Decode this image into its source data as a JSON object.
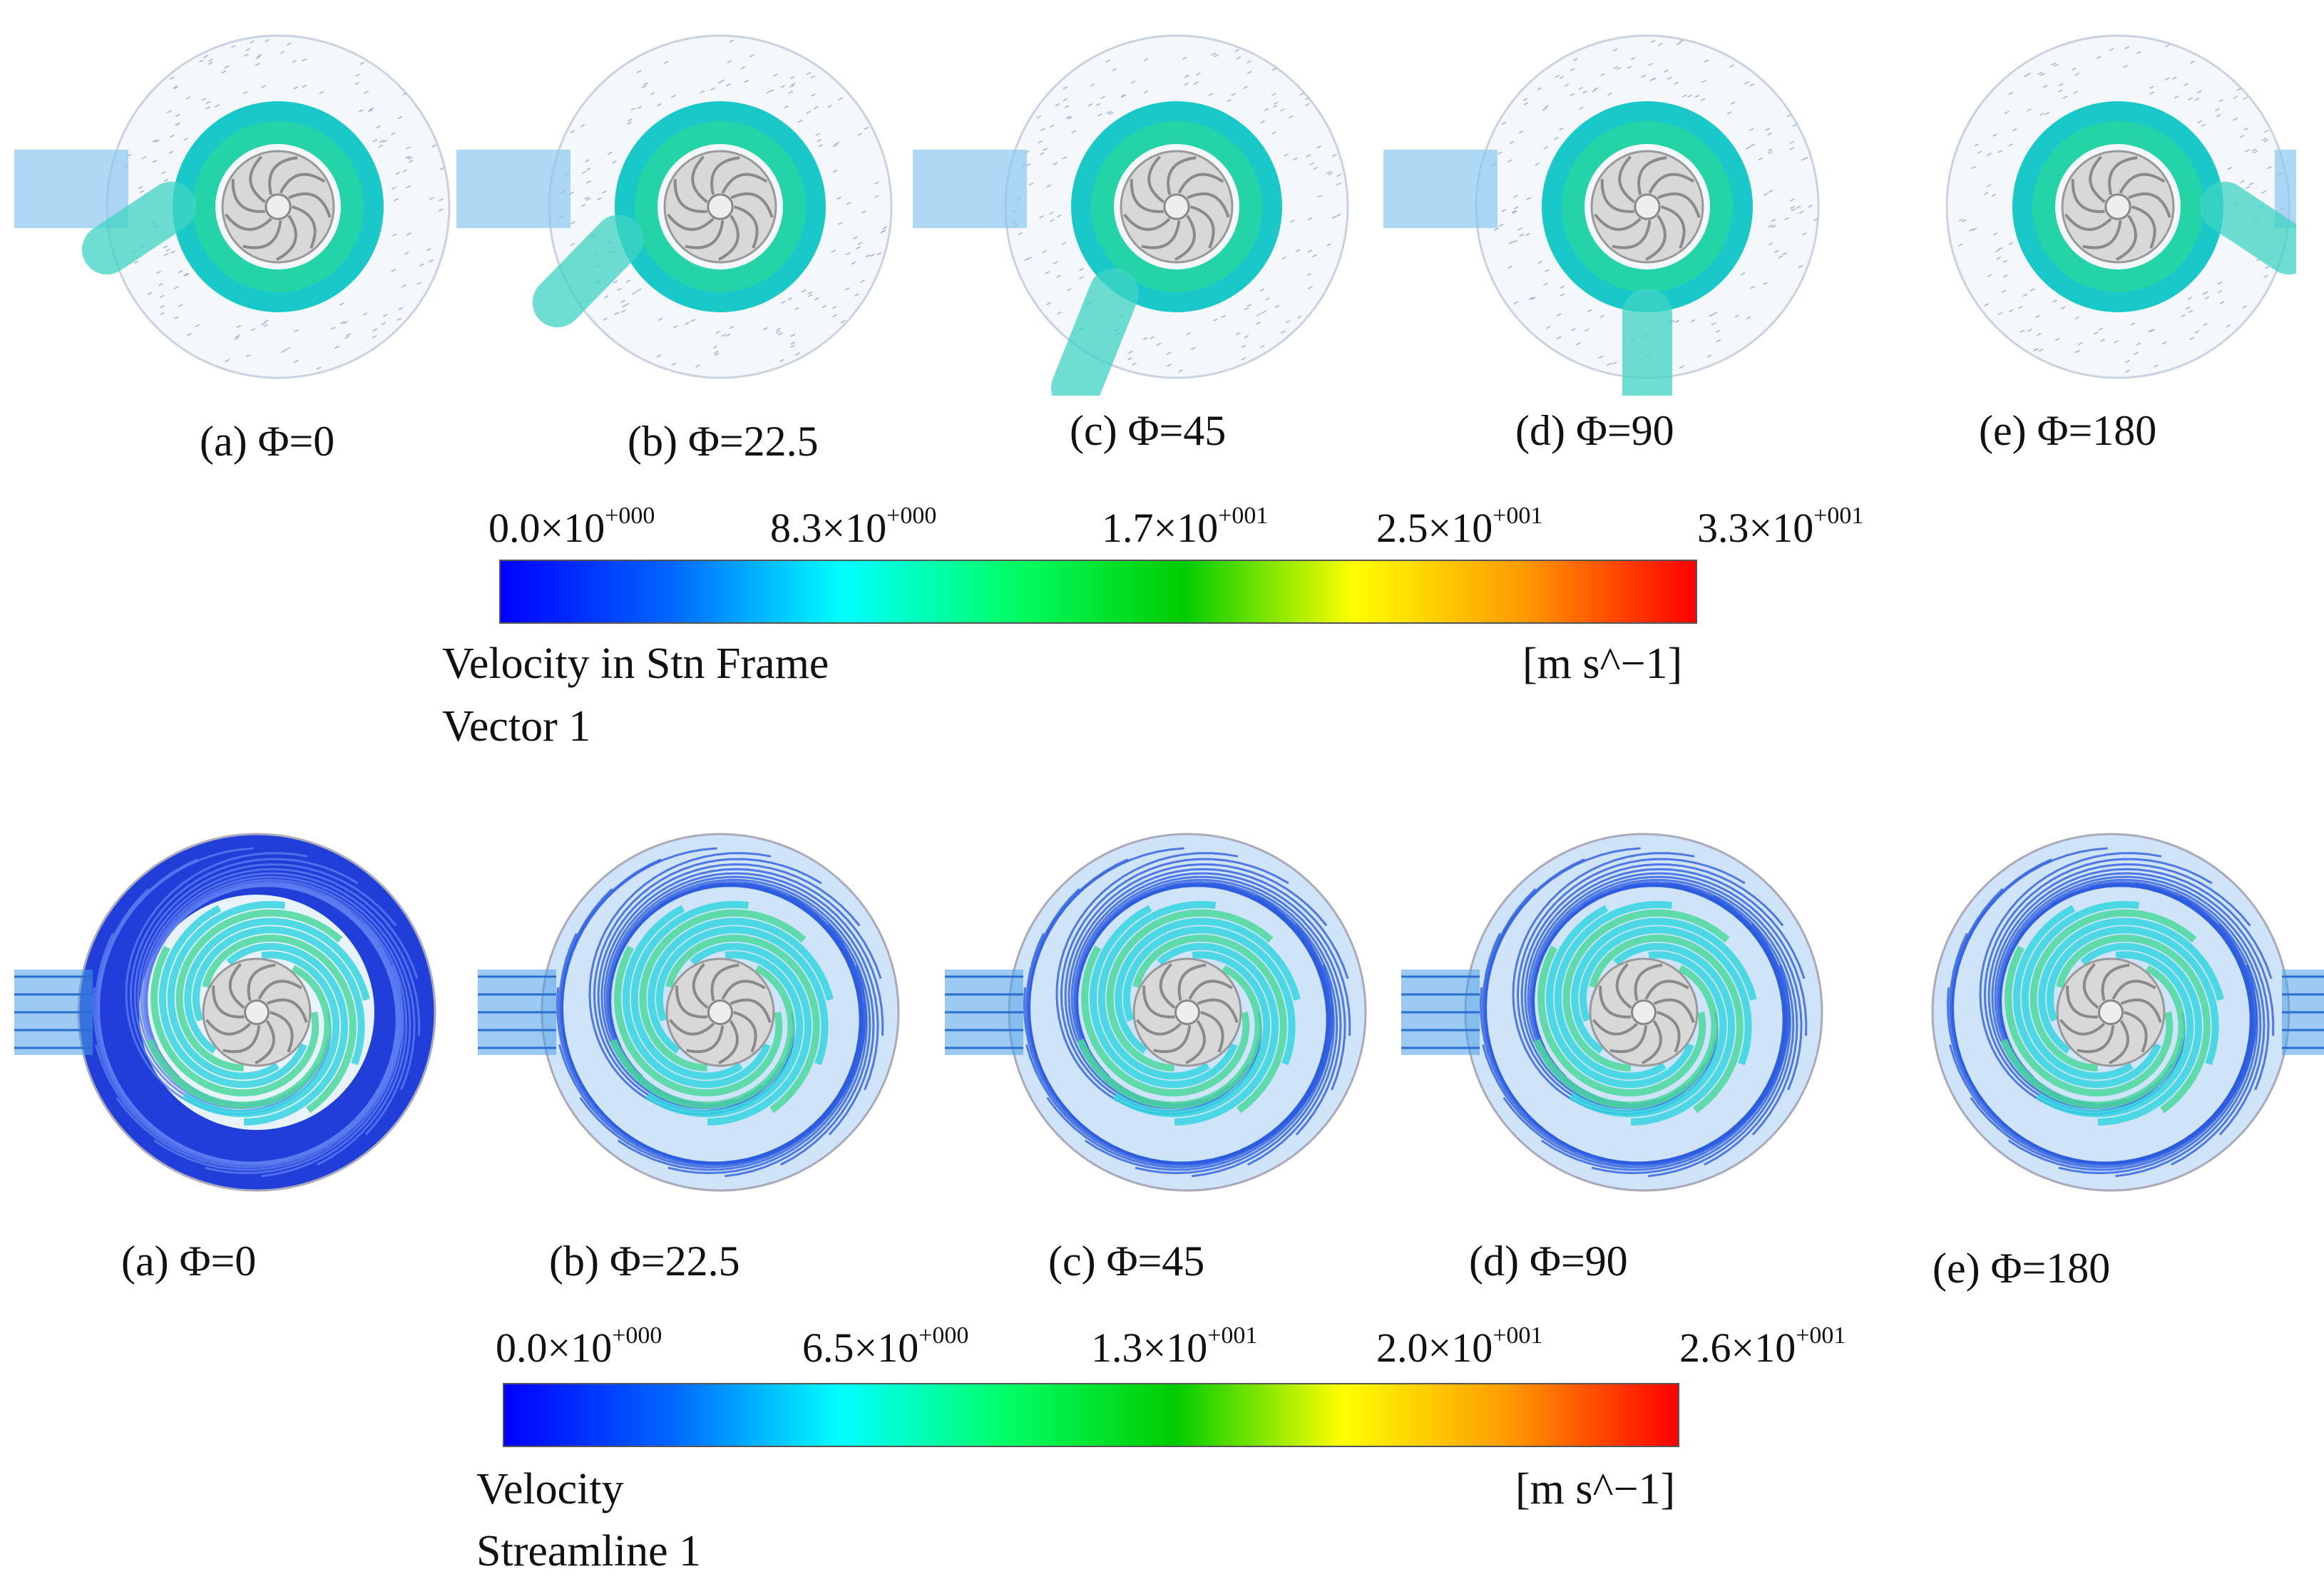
{
  "vector_row": {
    "captions": [
      "(a) Φ=0",
      "(b) Φ=22.5",
      "(c) Φ=45",
      "(d) Φ=90",
      "(e) Φ=180"
    ],
    "colorbar": {
      "ticks": [
        {
          "mantissa": "0.0×10",
          "exp": "+000"
        },
        {
          "mantissa": "8.3×10",
          "exp": "+000"
        },
        {
          "mantissa": "1.7×10",
          "exp": "+001"
        },
        {
          "mantissa": "2.5×10",
          "exp": "+001"
        },
        {
          "mantissa": "3.3×10",
          "exp": "+001"
        }
      ],
      "variable": "Velocity in Stn Frame",
      "object": "Vector 1",
      "units": "[m s^−1]"
    }
  },
  "streamline_row": {
    "captions": [
      "(a) Φ=0",
      "(b) Φ=22.5",
      "(c) Φ=45",
      "(d) Φ=90",
      "(e) Φ=180"
    ],
    "colorbar": {
      "ticks": [
        {
          "mantissa": "0.0×10",
          "exp": "+000"
        },
        {
          "mantissa": "6.5×10",
          "exp": "+000"
        },
        {
          "mantissa": "1.3×10",
          "exp": "+001"
        },
        {
          "mantissa": "2.0×10",
          "exp": "+001"
        },
        {
          "mantissa": "2.6×10",
          "exp": "+001"
        }
      ],
      "variable": "Velocity",
      "object": "Streamline 1",
      "units": "[m s^−1]"
    }
  },
  "colors": {
    "scale": [
      "#0000ff",
      "#0066ff",
      "#00ffff",
      "#00ff66",
      "#00cc00",
      "#ffff00",
      "#ff9900",
      "#ff0000"
    ],
    "low_flow": "#1a3ee0",
    "mid_flow": "#22d0d8",
    "impeller": "#c8c8c8"
  }
}
